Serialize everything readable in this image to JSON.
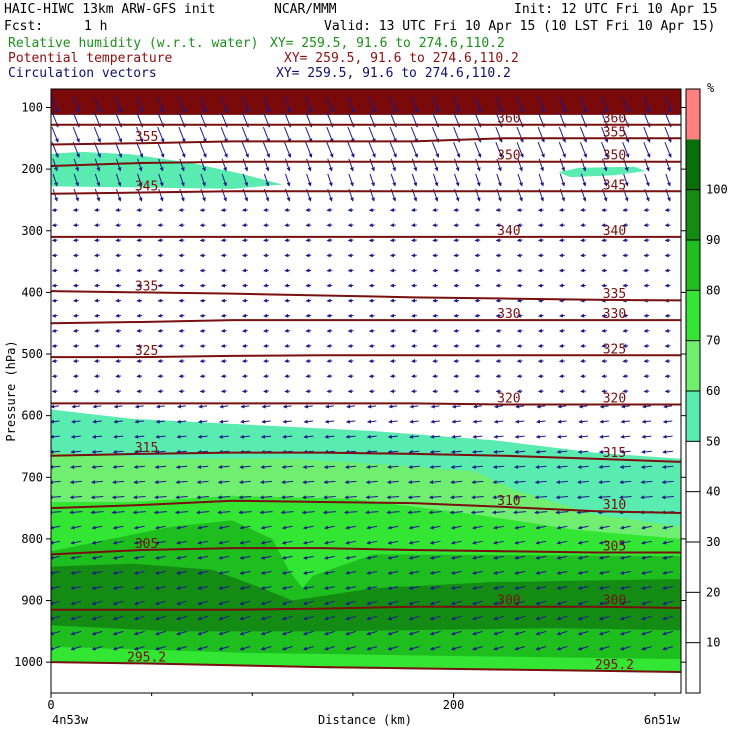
{
  "header": {
    "model": "HAIC-HIWC 13km ARW-GFS init",
    "org": "NCAR/MMM",
    "init": "Init: 12 UTC Fri 10 Apr 15",
    "fcst_label": "Fcst:",
    "fcst_value": "1 h",
    "valid": "Valid: 13 UTC Fri 10 Apr 15 (10 LST Fri 10 Apr 15)",
    "fields": [
      {
        "name": "Relative humidity (w.r.t. water)",
        "xy": "XY= 259.5, 91.6 to 274.6,110.2",
        "color": "#1a8f1a"
      },
      {
        "name": "Potential temperature",
        "xy": "XY= 259.5, 91.6 to 274.6,110.2",
        "color": "#8b1010"
      },
      {
        "name": "Circulation vectors",
        "xy": "XY= 259.5, 91.6 to 274.6,110.2",
        "color": "#10106b"
      }
    ]
  },
  "chart_data": {
    "type": "heatmap",
    "xlabel": "Distance (km)",
    "ylabel": "Pressure (hPa)",
    "xlim": [
      0,
      313
    ],
    "ylim": [
      1050,
      70
    ],
    "x_ticks": [
      0,
      200
    ],
    "y_ticks": [
      100,
      200,
      300,
      400,
      500,
      600,
      700,
      800,
      900,
      1000
    ],
    "x_end_labels": {
      "left": "4n53w",
      "right": "6n51w"
    },
    "colorbar": {
      "unit": "%",
      "levels": [
        10,
        20,
        30,
        40,
        50,
        60,
        70,
        80,
        90,
        100
      ],
      "colors": [
        "#ffffff",
        "#ffffff",
        "#ffffff",
        "#ffffff",
        "#ffffff",
        "#59ebb0",
        "#6fee6f",
        "#33e633",
        "#1ebe1e",
        "#148c14",
        "#0a6e0a",
        "#ff8080"
      ]
    },
    "theta_lines": [
      {
        "label": "295.2",
        "p": [
          1000,
          1002,
          1005,
          1008,
          1010,
          1012,
          1014,
          1016
        ]
      },
      {
        "label": "300",
        "p": [
          915,
          915,
          915,
          913,
          910,
          910,
          910,
          912
        ]
      },
      {
        "label": "305",
        "p": [
          825,
          818,
          815,
          815,
          818,
          820,
          822,
          822
        ]
      },
      {
        "label": "310",
        "p": [
          750,
          745,
          738,
          740,
          742,
          748,
          755,
          758
        ]
      },
      {
        "label": "315",
        "p": [
          665,
          662,
          660,
          660,
          662,
          665,
          670,
          675
        ]
      },
      {
        "label": "320",
        "p": [
          580,
          580,
          580,
          580,
          580,
          582,
          582,
          582
        ]
      },
      {
        "label": "325",
        "p": [
          505,
          505,
          503,
          502,
          502,
          502,
          502,
          502
        ]
      },
      {
        "label": "330",
        "p": [
          450,
          448,
          445,
          445,
          445,
          445,
          445,
          445
        ]
      },
      {
        "label": "335",
        "p": [
          398,
          400,
          402,
          405,
          408,
          410,
          412,
          413
        ]
      },
      {
        "label": "340",
        "p": [
          310,
          310,
          310,
          310,
          310,
          310,
          310,
          310
        ]
      },
      {
        "label": "345",
        "p": [
          240,
          238,
          236,
          236,
          236,
          236,
          236,
          236
        ]
      },
      {
        "label": "350",
        "p": [
          195,
          190,
          188,
          188,
          188,
          188,
          188,
          188
        ]
      },
      {
        "label": "355",
        "p": [
          160,
          158,
          155,
          155,
          155,
          150,
          150,
          150
        ]
      },
      {
        "label": "360",
        "p": [
          128,
          128,
          128,
          128,
          128,
          128,
          128,
          128
        ]
      }
    ],
    "theta_x": [
      0,
      45,
      90,
      135,
      180,
      225,
      270,
      313
    ],
    "theta_label_at_pixels": true
  }
}
